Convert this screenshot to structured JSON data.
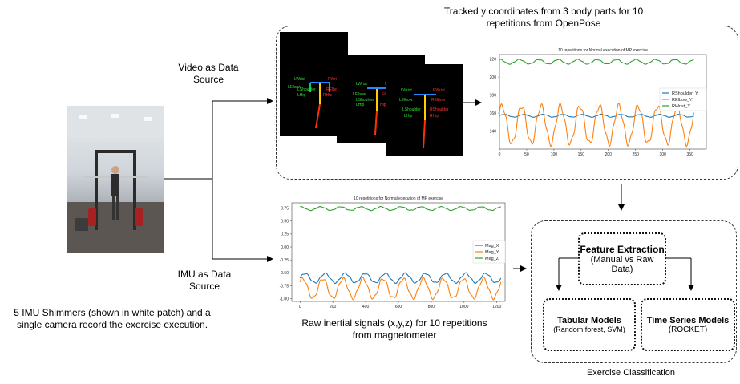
{
  "labels": {
    "top_title": "Tracked y coordinates from 3 body parts for 10 repetitions from OpenPose",
    "video_source": "Video as Data Source",
    "imu_source": "IMU as Data Source",
    "photo_caption": "5 IMU Shimmers (shown in white patch) and a single camera record the exercise execution.",
    "imu_caption": "Raw inertial signals (x,y,z) for 10 repetitions from magnetometer",
    "classification_caption": "Exercise Classification"
  },
  "boxes": {
    "feature_title": "Feature Extraction",
    "feature_sub": "(Manual vs Raw Data)",
    "tabular_title": "Tabular Models",
    "tabular_sub": "(Random forest, SVM)",
    "ts_title": "Time Series Models",
    "ts_sub": "(ROCKET)"
  },
  "skeleton_labels": {
    "f1": [
      "LWrist",
      "LElbow",
      "LShoulder",
      "LHip",
      "RWrist",
      "RElbow",
      "RHip"
    ],
    "f2": [
      "LWrist",
      "LElbow",
      "LShoulder",
      "LHip",
      "R",
      "Elbow",
      "Hip"
    ],
    "f3": [
      "LWrist",
      "LElbow",
      "LShoulder",
      "LHip",
      "RWrist",
      "RElbow",
      "RShoulder",
      "RHip"
    ]
  },
  "colors": {
    "blue": "#1f77b4",
    "orange": "#ff7f0e",
    "green": "#2ca02c"
  },
  "chart_data": [
    {
      "type": "line",
      "title": "10 repetitions for Normal execution of MP exercise",
      "xlim": [
        0,
        380
      ],
      "ylim": [
        120,
        225
      ],
      "xticks": [
        0,
        50,
        100,
        150,
        200,
        250,
        300,
        350
      ],
      "yticks": [
        140,
        160,
        180,
        200,
        220
      ],
      "reps": 10,
      "series": [
        {
          "name": "RShoulder_Y",
          "color": "#1f77b4",
          "base": 157,
          "amp": 1.5
        },
        {
          "name": "RElbow_Y",
          "color": "#ff7f0e",
          "base": 147,
          "amp": 21
        },
        {
          "name": "RWrist_Y",
          "color": "#2ca02c",
          "base": 217,
          "amp": 2.5
        }
      ]
    },
    {
      "type": "line",
      "title": "10 repetitions for Normal execution of MP exercise",
      "xlim": [
        -50,
        1250
      ],
      "ylim": [
        -1.05,
        0.85
      ],
      "xticks": [
        0,
        200,
        400,
        600,
        800,
        1000,
        1200
      ],
      "yticks": [
        0.75,
        0.5,
        0.25,
        0.0,
        -0.25,
        -0.5,
        -0.75,
        -1.0
      ],
      "ytick_labels": [
        "0.75",
        "0.50",
        "0.25",
        "0.00",
        "-0.25",
        "-0.50",
        "-0.75",
        "-1.00"
      ],
      "reps": 10,
      "series": [
        {
          "name": "Mag_X",
          "color": "#1f77b4",
          "base": -0.6,
          "amp": 0.09
        },
        {
          "name": "Mag_Y",
          "color": "#ff7f0e",
          "base": -0.8,
          "amp": 0.19
        },
        {
          "name": "Mag_Z",
          "color": "#2ca02c",
          "base": 0.74,
          "amp": 0.035
        }
      ]
    }
  ]
}
